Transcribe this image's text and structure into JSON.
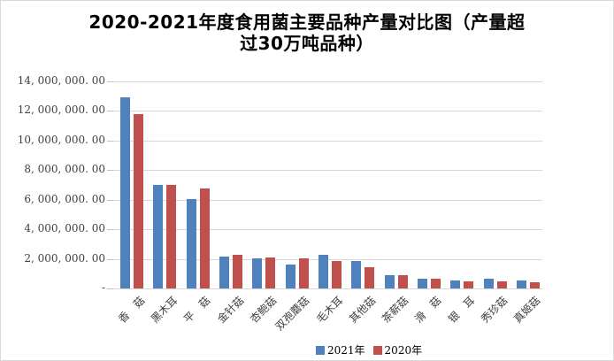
{
  "chart": {
    "title_full": "2020-2021年度食用菌主要品种产量对比图（产量超过30万吨品种）",
    "title_line1": "2020-2021年度食用菌主要品种产量对比图（产量超",
    "title_line2": "过30万吨品种）"
  },
  "y_axis": {
    "tick_labels": [
      "14, 000, 000. 00",
      "12, 000, 000. 00",
      "10, 000, 000. 00",
      "8, 000, 000. 00",
      "6, 000, 000. 00",
      "4, 000, 000. 00",
      "2, 000, 000. 00",
      "-"
    ]
  },
  "legend": {
    "items": [
      {
        "label": "2021年",
        "color": "#4F81BD"
      },
      {
        "label": "2020年",
        "color": "#C0504D"
      }
    ]
  },
  "colors": {
    "series_2021": "#4F81BD",
    "series_2020": "#C0504D",
    "gridline": "#d9d9d9",
    "tick_text": "#404040",
    "title_text": "#000000",
    "border": "#d9d9d9"
  },
  "chart_data": {
    "type": "bar",
    "title": "2020-2021年度食用菌主要品种产量对比图（产量超过30万吨品种）",
    "xlabel": "",
    "ylabel": "",
    "categories": [
      "香　菇",
      "黑木耳",
      "平　菇",
      "金针菇",
      "杏鲍菇",
      "双孢蘑菇",
      "毛木耳",
      "其他菇",
      "茶薪菇",
      "滑　菇",
      "银　耳",
      "秀珍菇",
      "真姬菇"
    ],
    "series": [
      {
        "name": "2021年",
        "color": "#4F81BD",
        "values": [
          12900000,
          7000000,
          6050000,
          2150000,
          2050000,
          1620000,
          2260000,
          1870000,
          880000,
          650000,
          540000,
          660000,
          560000
        ]
      },
      {
        "name": "2020年",
        "color": "#C0504D",
        "values": [
          11800000,
          7020000,
          6780000,
          2280000,
          2100000,
          2040000,
          1860000,
          1440000,
          900000,
          670000,
          500000,
          480000,
          420000
        ]
      }
    ],
    "ylim": [
      0,
      14000000
    ],
    "y_tick_interval": 2000000,
    "grid": true,
    "legend_position": "bottom"
  }
}
